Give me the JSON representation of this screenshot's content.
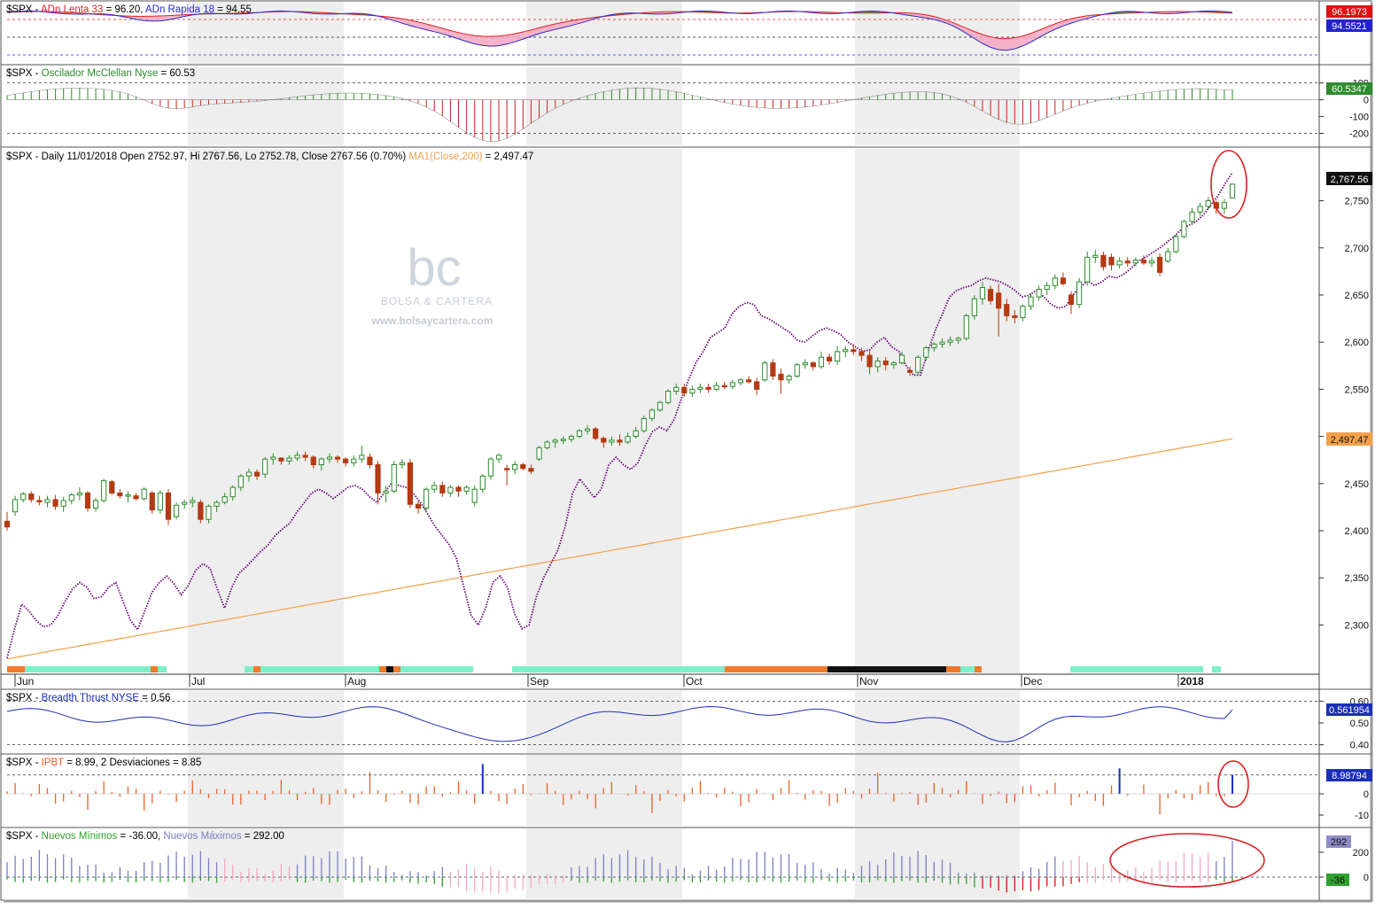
{
  "colors": {
    "up_candle": "#2e8b2e",
    "down_candle": "#b33a12",
    "ma200": "#f2a04a",
    "mcclellan_pos": "#2e8b2e",
    "mcclellan_neg": "#cc2222",
    "breadth": "#1a2fb8",
    "ipbt": "#e8622a",
    "ipbt_spike": "#1a2fb8",
    "new_highs": "#7d7dc2",
    "new_lows": "#2ea12e",
    "new_lows_red": "#dd1111",
    "pink": "#f5a6c0",
    "ad_slow": "#dd2222",
    "ad_fast": "#2a2ad0",
    "annotation": "#dd1f1f",
    "purple_line": "#6a0a78"
  },
  "panels": {
    "ad": {
      "label_prefix": "$SPX - ",
      "slow_label": "ADn Lenta 33",
      "slow_value": " = 96.20, ",
      "fast_label": "ADn Rapida 18",
      "fast_value": " = 94.55",
      "badge_slow": "96.1973",
      "badge_fast": "94.5521"
    },
    "mcclellan": {
      "title_prefix": "$SPX - ",
      "title": "Oscilador McClellan Nyse",
      "title_value": " = 60.53",
      "badge": "60.5347",
      "ticks": [
        "100",
        "0",
        "-100",
        "-200"
      ]
    },
    "price": {
      "title": "$SPX - Daily 11/01/2018 Open 2752.97, Hi 2767.56, Lo 2752.78, Close 2767.56 (0.70%) ",
      "ma_label": "MA1(Close,200)",
      "ma_value": " = 2,497.47",
      "badge_close": "2,767.56",
      "badge_ma": "2,497.47",
      "ticks": [
        "2,750",
        "2,700",
        "2,650",
        "2,600",
        "2,550",
        "2,500",
        "2,450",
        "2,400",
        "2,350",
        "2,300"
      ]
    },
    "breadth": {
      "title_prefix": "$SPX - ",
      "title": "Breadth Thrust NYSE",
      "title_value": " = 0.56",
      "badge": "0.561954",
      "ticks": [
        "0.60",
        "0.50",
        "0.40"
      ]
    },
    "ipbt": {
      "title_prefix": "$SPX - ",
      "title": "IPBT",
      "title_value": " = 8.99,     2 Desviaciones = 8.85",
      "badge": "8.98794",
      "ticks": [
        "0",
        "-10"
      ]
    },
    "newhl": {
      "title_prefix": "$SPX - ",
      "lows_label": "Nuevos Mínimos",
      "lows_value": " = -36.00, ",
      "highs_label": "Nuevos Máximos",
      "highs_value": " = 292.00",
      "badge_highs": "292",
      "badge_lows": "-36",
      "ticks": [
        "200",
        "0"
      ]
    }
  },
  "months": [
    "Jun",
    "Jul",
    "Aug",
    "Sep",
    "Oct",
    "Nov",
    "Dec",
    "2018"
  ],
  "watermark": {
    "logo": "bc",
    "name": "BOLSA & CARTERA",
    "url": "www.bolsaycartera.com"
  },
  "chart_data": {
    "type": "candlestick",
    "title": "$SPX - Daily 11/01/2018",
    "ylim": [
      2260,
      2790
    ],
    "ma200": {
      "name": "MA1(Close,200)",
      "start": 2264,
      "end": 2497.47
    },
    "ohlc": [
      [
        2410,
        2420,
        2400,
        2404
      ],
      [
        2420,
        2437,
        2416,
        2433
      ],
      [
        2433,
        2441,
        2430,
        2439
      ],
      [
        2439,
        2442,
        2430,
        2433
      ],
      [
        2432,
        2437,
        2427,
        2431
      ],
      [
        2430,
        2437,
        2425,
        2433
      ],
      [
        2433,
        2438,
        2422,
        2426
      ],
      [
        2426,
        2436,
        2420,
        2432
      ],
      [
        2432,
        2440,
        2428,
        2438
      ],
      [
        2438,
        2446,
        2432,
        2440
      ],
      [
        2440,
        2442,
        2420,
        2424
      ],
      [
        2424,
        2435,
        2420,
        2432
      ],
      [
        2432,
        2455,
        2430,
        2453
      ],
      [
        2452,
        2454,
        2438,
        2440
      ],
      [
        2440,
        2444,
        2434,
        2437
      ],
      [
        2437,
        2442,
        2430,
        2438
      ],
      [
        2437,
        2440,
        2432,
        2434
      ],
      [
        2434,
        2446,
        2432,
        2444
      ],
      [
        2440,
        2442,
        2418,
        2422
      ],
      [
        2422,
        2443,
        2418,
        2440
      ],
      [
        2440,
        2444,
        2406,
        2412
      ],
      [
        2415,
        2430,
        2412,
        2427
      ],
      [
        2428,
        2433,
        2423,
        2430
      ],
      [
        2430,
        2436,
        2425,
        2432
      ],
      [
        2430,
        2433,
        2408,
        2412
      ],
      [
        2412,
        2428,
        2408,
        2426
      ],
      [
        2426,
        2432,
        2420,
        2430
      ],
      [
        2430,
        2440,
        2428,
        2436
      ],
      [
        2436,
        2448,
        2432,
        2446
      ],
      [
        2446,
        2460,
        2442,
        2458
      ],
      [
        2458,
        2466,
        2452,
        2462
      ],
      [
        2462,
        2465,
        2454,
        2458
      ],
      [
        2460,
        2478,
        2456,
        2476
      ],
      [
        2476,
        2482,
        2470,
        2478
      ],
      [
        2477,
        2478,
        2470,
        2474
      ],
      [
        2474,
        2480,
        2470,
        2477
      ],
      [
        2477,
        2484,
        2474,
        2480
      ],
      [
        2480,
        2484,
        2474,
        2478
      ],
      [
        2478,
        2480,
        2466,
        2470
      ],
      [
        2470,
        2478,
        2464,
        2476
      ],
      [
        2476,
        2482,
        2472,
        2478
      ],
      [
        2478,
        2480,
        2472,
        2476
      ],
      [
        2476,
        2478,
        2468,
        2472
      ],
      [
        2472,
        2480,
        2468,
        2476
      ],
      [
        2476,
        2490,
        2472,
        2480
      ],
      [
        2478,
        2482,
        2466,
        2470
      ],
      [
        2470,
        2474,
        2428,
        2440
      ],
      [
        2440,
        2448,
        2430,
        2442
      ],
      [
        2442,
        2474,
        2440,
        2470
      ],
      [
        2470,
        2476,
        2466,
        2472
      ],
      [
        2472,
        2476,
        2424,
        2428
      ],
      [
        2428,
        2432,
        2418,
        2424
      ],
      [
        2424,
        2446,
        2420,
        2444
      ],
      [
        2444,
        2452,
        2440,
        2448
      ],
      [
        2448,
        2452,
        2436,
        2440
      ],
      [
        2440,
        2448,
        2436,
        2446
      ],
      [
        2446,
        2448,
        2436,
        2442
      ],
      [
        2442,
        2448,
        2438,
        2446
      ],
      [
        2430,
        2448,
        2426,
        2444
      ],
      [
        2444,
        2460,
        2440,
        2458
      ],
      [
        2458,
        2478,
        2454,
        2476
      ],
      [
        2476,
        2482,
        2472,
        2480
      ],
      [
        2466,
        2470,
        2448,
        2465
      ],
      [
        2465,
        2474,
        2460,
        2470
      ],
      [
        2470,
        2472,
        2464,
        2466
      ],
      [
        2466,
        2470,
        2460,
        2463
      ],
      [
        2476,
        2490,
        2474,
        2488
      ],
      [
        2488,
        2496,
        2486,
        2494
      ],
      [
        2494,
        2498,
        2488,
        2496
      ],
      [
        2496,
        2500,
        2492,
        2497
      ],
      [
        2497,
        2502,
        2494,
        2500
      ],
      [
        2500,
        2508,
        2498,
        2506
      ],
      [
        2506,
        2512,
        2502,
        2508
      ],
      [
        2508,
        2510,
        2496,
        2498
      ],
      [
        2498,
        2500,
        2488,
        2494
      ],
      [
        2494,
        2500,
        2490,
        2496
      ],
      [
        2496,
        2502,
        2490,
        2494
      ],
      [
        2494,
        2504,
        2492,
        2500
      ],
      [
        2500,
        2510,
        2498,
        2506
      ],
      [
        2506,
        2522,
        2504,
        2519
      ],
      [
        2519,
        2530,
        2516,
        2528
      ],
      [
        2528,
        2538,
        2526,
        2536
      ],
      [
        2536,
        2550,
        2534,
        2548
      ],
      [
        2548,
        2556,
        2544,
        2552
      ],
      [
        2552,
        2556,
        2542,
        2546
      ],
      [
        2546,
        2554,
        2542,
        2550
      ],
      [
        2550,
        2556,
        2546,
        2552
      ],
      [
        2552,
        2556,
        2546,
        2550
      ],
      [
        2550,
        2558,
        2548,
        2554
      ],
      [
        2554,
        2558,
        2550,
        2553
      ],
      [
        2553,
        2560,
        2550,
        2557
      ],
      [
        2557,
        2562,
        2554,
        2560
      ],
      [
        2560,
        2564,
        2556,
        2558
      ],
      [
        2558,
        2562,
        2544,
        2550
      ],
      [
        2560,
        2580,
        2558,
        2578
      ],
      [
        2578,
        2582,
        2560,
        2564
      ],
      [
        2566,
        2572,
        2545,
        2560
      ],
      [
        2560,
        2566,
        2556,
        2564
      ],
      [
        2564,
        2578,
        2562,
        2576
      ],
      [
        2576,
        2582,
        2572,
        2578
      ],
      [
        2578,
        2580,
        2570,
        2574
      ],
      [
        2574,
        2590,
        2572,
        2584
      ],
      [
        2584,
        2588,
        2576,
        2580
      ],
      [
        2580,
        2596,
        2576,
        2590
      ],
      [
        2590,
        2596,
        2584,
        2592
      ],
      [
        2592,
        2598,
        2586,
        2590
      ],
      [
        2590,
        2594,
        2580,
        2586
      ],
      [
        2586,
        2592,
        2566,
        2574
      ],
      [
        2574,
        2584,
        2568,
        2580
      ],
      [
        2580,
        2584,
        2570,
        2576
      ],
      [
        2576,
        2580,
        2572,
        2578
      ],
      [
        2578,
        2590,
        2576,
        2586
      ],
      [
        2570,
        2574,
        2564,
        2568
      ],
      [
        2568,
        2586,
        2566,
        2584
      ],
      [
        2584,
        2596,
        2580,
        2594
      ],
      [
        2594,
        2600,
        2590,
        2598
      ],
      [
        2598,
        2604,
        2594,
        2600
      ],
      [
        2600,
        2606,
        2596,
        2602
      ],
      [
        2602,
        2606,
        2598,
        2604
      ],
      [
        2604,
        2630,
        2602,
        2628
      ],
      [
        2628,
        2650,
        2624,
        2646
      ],
      [
        2646,
        2664,
        2640,
        2658
      ],
      [
        2656,
        2660,
        2640,
        2644
      ],
      [
        2652,
        2662,
        2606,
        2636
      ],
      [
        2640,
        2646,
        2622,
        2628
      ],
      [
        2628,
        2634,
        2620,
        2626
      ],
      [
        2626,
        2640,
        2622,
        2638
      ],
      [
        2638,
        2652,
        2634,
        2648
      ],
      [
        2648,
        2660,
        2644,
        2656
      ],
      [
        2656,
        2664,
        2650,
        2660
      ],
      [
        2660,
        2672,
        2656,
        2668
      ],
      [
        2668,
        2674,
        2660,
        2662
      ],
      [
        2650,
        2654,
        2630,
        2640
      ],
      [
        2640,
        2668,
        2636,
        2664
      ],
      [
        2664,
        2696,
        2660,
        2690
      ],
      [
        2690,
        2698,
        2684,
        2692
      ],
      [
        2692,
        2696,
        2676,
        2680
      ],
      [
        2690,
        2694,
        2676,
        2682
      ],
      [
        2682,
        2690,
        2678,
        2686
      ],
      [
        2686,
        2690,
        2680,
        2684
      ],
      [
        2684,
        2690,
        2680,
        2687
      ],
      [
        2687,
        2692,
        2682,
        2684
      ],
      [
        2684,
        2690,
        2680,
        2686
      ],
      [
        2690,
        2694,
        2670,
        2674
      ],
      [
        2686,
        2700,
        2684,
        2696
      ],
      [
        2696,
        2714,
        2694,
        2712
      ],
      [
        2712,
        2730,
        2710,
        2728
      ],
      [
        2728,
        2742,
        2724,
        2738
      ],
      [
        2738,
        2748,
        2734,
        2744
      ],
      [
        2744,
        2754,
        2740,
        2750
      ],
      [
        2748,
        2750,
        2736,
        2742
      ],
      [
        2742,
        2752,
        2736,
        2748
      ],
      [
        2752.97,
        2767.56,
        2752.78,
        2767.56
      ]
    ],
    "purple_line": [
      2265,
      2295,
      2322,
      2315,
      2305,
      2298,
      2300,
      2310,
      2325,
      2338,
      2345,
      2340,
      2328,
      2330,
      2340,
      2345,
      2325,
      2305,
      2295,
      2315,
      2335,
      2345,
      2352,
      2344,
      2332,
      2342,
      2358,
      2365,
      2360,
      2338,
      2318,
      2340,
      2355,
      2362,
      2370,
      2378,
      2385,
      2395,
      2402,
      2408,
      2420,
      2430,
      2440,
      2444,
      2440,
      2434,
      2440,
      2446,
      2448,
      2444,
      2436,
      2430,
      2440,
      2450,
      2448,
      2446,
      2440,
      2430,
      2418,
      2405,
      2395,
      2385,
      2370,
      2340,
      2310,
      2300,
      2318,
      2345,
      2352,
      2340,
      2312,
      2296,
      2300,
      2330,
      2350,
      2365,
      2380,
      2405,
      2440,
      2455,
      2445,
      2435,
      2445,
      2470,
      2478,
      2470,
      2465,
      2472,
      2490,
      2505,
      2510,
      2506,
      2518,
      2540,
      2560,
      2578,
      2590,
      2605,
      2610,
      2615,
      2630,
      2638,
      2642,
      2640,
      2628,
      2625,
      2620,
      2615,
      2610,
      2602,
      2600,
      2606,
      2612,
      2615,
      2612,
      2608,
      2600,
      2595,
      2590,
      2592,
      2600,
      2605,
      2595,
      2590,
      2575,
      2565,
      2565,
      2590,
      2612,
      2630,
      2648,
      2655,
      2658,
      2660,
      2665,
      2668,
      2666,
      2664,
      2660,
      2655,
      2648,
      2650,
      2655,
      2648,
      2640,
      2636,
      2638,
      2650,
      2658,
      2665,
      2660,
      2664,
      2670,
      2668,
      2672,
      2678,
      2686,
      2690,
      2695,
      2700,
      2706,
      2712,
      2720,
      2724,
      2728,
      2735,
      2745,
      2755,
      2768,
      2780
    ],
    "breadth_thrust": {
      "name": "Breadth Thrust NYSE",
      "ylim": [
        0.37,
        0.63
      ],
      "last": 0.56
    },
    "ipbt": {
      "name": "IPBT",
      "last": 8.99,
      "two_sd": 8.85
    },
    "new_highs_lows": {
      "highs_last": 292,
      "lows_last": -36
    },
    "mcclellan": {
      "last": 60.53,
      "ylim": [
        -250,
        140
      ]
    },
    "ad_lines": {
      "slow": 96.2,
      "fast": 94.55
    }
  }
}
